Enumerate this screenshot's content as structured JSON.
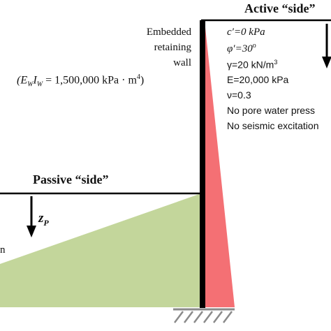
{
  "labels": {
    "active_side": "Active “side”",
    "passive_side": "Passive “side”",
    "wall_line1": "Embedded",
    "wall_line2": "retaining",
    "wall_line3": "wall",
    "stiffness_lhs": "(E",
    "stiffness_sub_w1": "W",
    "stiffness_i": "I",
    "stiffness_sub_w2": "W",
    "stiffness_rhs": " = 1,500,000 kPa · m",
    "stiffness_exp": "4",
    "stiffness_close": ")",
    "zp_z": "z",
    "zp_sub": "P",
    "left_cut_char": "n"
  },
  "soil_parameters": {
    "c_prime": "c′=0 kPa",
    "phi_prime_text": "φ′=30",
    "phi_prime_unit": "o",
    "gamma_text": "γ=20 kN/m",
    "gamma_exp": "3",
    "E": "E=20,000 kPa",
    "nu": "ν=0.3",
    "pore_water": "No pore water press",
    "seismic": "No seismic excitation"
  },
  "colors": {
    "passive_fill": "#c3d69b",
    "active_fill": "#f47074",
    "wall": "#000000",
    "hatch": "#8a8a8a"
  }
}
